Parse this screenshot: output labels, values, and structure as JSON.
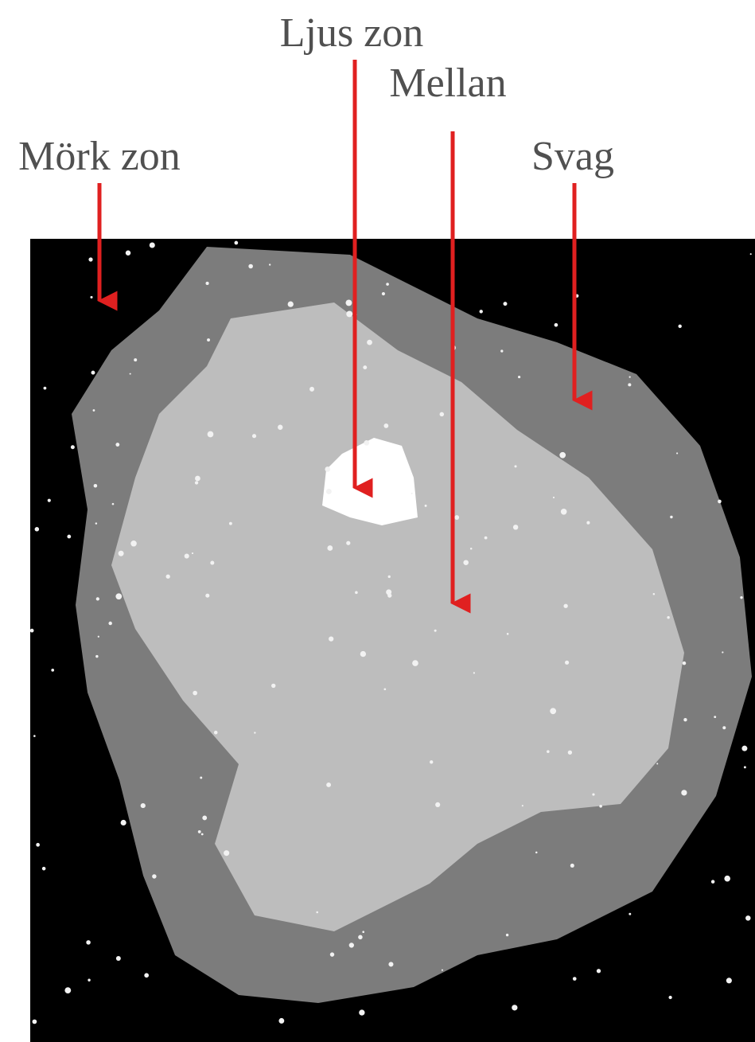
{
  "labels": [
    "Mörk zon",
    "Ljus zon",
    "Mellan",
    "Svag"
  ]
}
